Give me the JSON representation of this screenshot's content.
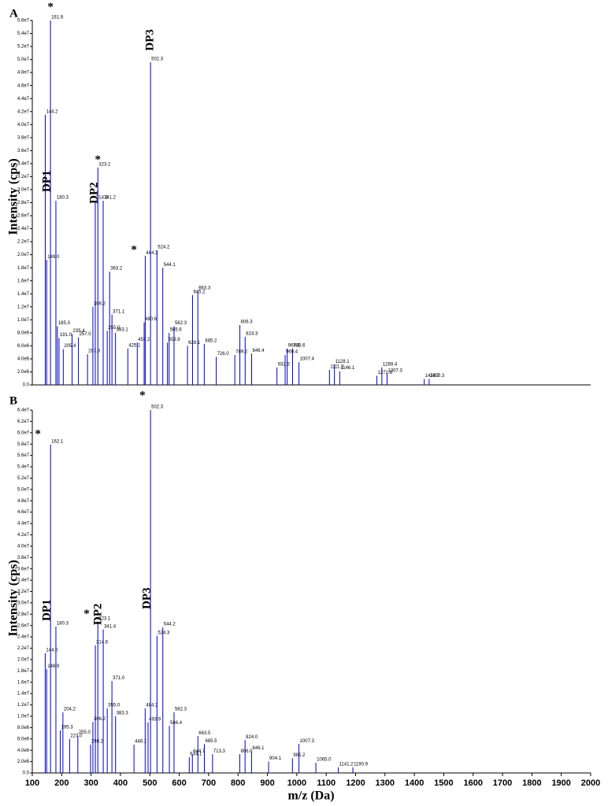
{
  "chart_data": [
    {
      "type": "stem",
      "title": "A",
      "ylabel": "Intensity (cps)",
      "color": "#0000cc",
      "xlim": [
        100,
        2000
      ],
      "ylim": [
        0,
        56000000
      ],
      "yticks": [
        {
          "value": 0,
          "label": "0.0"
        },
        {
          "value": 2000000,
          "label": "2.0e6"
        },
        {
          "value": 4000000,
          "label": "4.0e6"
        },
        {
          "value": 6000000,
          "label": "6.0e6"
        },
        {
          "value": 8000000,
          "label": "8.0e6"
        },
        {
          "value": 10000000,
          "label": "1.0e7"
        },
        {
          "value": 12000000,
          "label": "1.2e7"
        },
        {
          "value": 14000000,
          "label": "1.4e7"
        },
        {
          "value": 16000000,
          "label": "1.6e7"
        },
        {
          "value": 18000000,
          "label": "1.8e7"
        },
        {
          "value": 20000000,
          "label": "2.0e7"
        },
        {
          "value": 22000000,
          "label": "2.2e7"
        },
        {
          "value": 24000000,
          "label": "2.4e7"
        },
        {
          "value": 26000000,
          "label": "2.6e7"
        },
        {
          "value": 28000000,
          "label": "2.8e7"
        },
        {
          "value": 30000000,
          "label": "3.0e7"
        },
        {
          "value": 32000000,
          "label": "3.2e7"
        },
        {
          "value": 34000000,
          "label": "3.4e7"
        },
        {
          "value": 36000000,
          "label": "3.6e7"
        },
        {
          "value": 38000000,
          "label": "3.8e7"
        },
        {
          "value": 40000000,
          "label": "4.0e7"
        },
        {
          "value": 42000000,
          "label": "4.2e7"
        },
        {
          "value": 44000000,
          "label": "4.4e7"
        },
        {
          "value": 46000000,
          "label": "4.6e7"
        },
        {
          "value": 48000000,
          "label": "4.8e7"
        },
        {
          "value": 50000000,
          "label": "5.0e7"
        },
        {
          "value": 52000000,
          "label": "5.2e7"
        },
        {
          "value": 54000000,
          "label": "5.4e7"
        },
        {
          "value": 56000000,
          "label": "5.6e7"
        }
      ],
      "x": [
        161.9,
        144.2,
        180.3,
        149.0,
        185.3,
        191.0,
        205.4,
        235.4,
        257.0,
        287.9,
        314.3,
        323.2,
        341.2,
        363.2,
        306.2,
        371.1,
        355.0,
        383.1,
        425.1,
        457.2,
        484.3,
        502.3,
        524.2,
        544.1,
        480.6,
        565.6,
        582.3,
        559.9,
        645.2,
        663.3,
        628.1,
        685.2,
        726.0,
        806.3,
        824.3,
        789.2,
        846.4,
        960.4,
        967.3,
        985.6,
        1007.4,
        932.5,
        1128.1,
        1111.2,
        1146.1,
        1289.4,
        1272.6,
        1307.3,
        1433.7,
        1450.3
      ],
      "x_labels": [
        "161.9",
        "144.2",
        "180.3",
        "149.0",
        "185.3",
        "191.0",
        "205.4",
        "235.4",
        "257.0",
        "287.9",
        "314.3",
        "323.2",
        "341.2",
        "363.2",
        "306.2",
        "371.1",
        "355.0",
        "383.1",
        "425.1",
        "457.2",
        "484.3",
        "502.3",
        "524.2",
        "544.1",
        "480.6",
        "565.6",
        "582.3",
        "559.9",
        "645.2",
        "663.3",
        "628.1",
        "685.2",
        "726.0",
        "806.3",
        "824.3",
        "789.2",
        "846.4",
        "960.4",
        "967.3",
        "985.6",
        "1007.4",
        "932.5",
        "1128.1",
        "1111.2",
        "1146.1",
        "1289.4",
        "1272.6",
        "1307.3",
        "1433.7",
        "1450.3"
      ],
      "values": [
        56000000,
        41500000,
        28300000,
        19200000,
        9000000,
        7200000,
        5500000,
        7800000,
        7300000,
        4700000,
        28300000,
        33400000,
        28300000,
        17400000,
        12000000,
        10800000,
        8300000,
        8000000,
        5600000,
        6500000,
        19800000,
        49600000,
        20700000,
        18000000,
        9600000,
        8000000,
        9000000,
        6500000,
        13800000,
        14400000,
        6000000,
        6300000,
        4300000,
        9200000,
        7400000,
        4600000,
        4800000,
        4600000,
        5600000,
        5600000,
        3500000,
        2700000,
        3100000,
        2300000,
        2100000,
        2700000,
        1400000,
        1700000,
        900000,
        900000
      ],
      "annotations": [
        {
          "text": "*",
          "x": 161.9,
          "y": 58000000
        },
        {
          "text": "DP1",
          "x": 151,
          "y": 31300000,
          "vertical": true
        },
        {
          "text": "*",
          "x": 323.2,
          "y": 34500000
        },
        {
          "text": "DP2",
          "x": 312,
          "y": 29500000,
          "vertical": true
        },
        {
          "text": "*",
          "x": 446,
          "y": 20700000
        },
        {
          "text": "DP3",
          "x": 502.3,
          "y": 53000000,
          "vertical": true
        }
      ]
    },
    {
      "type": "stem",
      "title": "B",
      "ylabel": "Intensity (cps)",
      "xlabel": "m/z (Da)",
      "color": "#0000cc",
      "xlim": [
        100,
        2000
      ],
      "ylim": [
        0,
        64000000
      ],
      "xticks": [
        100,
        200,
        300,
        400,
        500,
        600,
        700,
        800,
        900,
        1000,
        1100,
        1200,
        1300,
        1400,
        1500,
        1600,
        1700,
        1800,
        1900,
        2000
      ],
      "yticks": [
        {
          "value": 0,
          "label": "0.0"
        },
        {
          "value": 2000000,
          "label": "2.0e6"
        },
        {
          "value": 4000000,
          "label": "4.0e6"
        },
        {
          "value": 6000000,
          "label": "6.0e6"
        },
        {
          "value": 8000000,
          "label": "8.0e6"
        },
        {
          "value": 10000000,
          "label": "1.0e7"
        },
        {
          "value": 12000000,
          "label": "1.2e7"
        },
        {
          "value": 14000000,
          "label": "1.4e7"
        },
        {
          "value": 16000000,
          "label": "1.6e7"
        },
        {
          "value": 18000000,
          "label": "1.8e7"
        },
        {
          "value": 20000000,
          "label": "2.0e7"
        },
        {
          "value": 22000000,
          "label": "2.2e7"
        },
        {
          "value": 24000000,
          "label": "2.4e7"
        },
        {
          "value": 26000000,
          "label": "2.6e7"
        },
        {
          "value": 28000000,
          "label": "2.8e7"
        },
        {
          "value": 30000000,
          "label": "3.0e7"
        },
        {
          "value": 32000000,
          "label": "3.2e7"
        },
        {
          "value": 34000000,
          "label": "3.4e7"
        },
        {
          "value": 36000000,
          "label": "3.6e7"
        },
        {
          "value": 38000000,
          "label": "3.8e7"
        },
        {
          "value": 40000000,
          "label": "4.0e7"
        },
        {
          "value": 42000000,
          "label": "4.2e7"
        },
        {
          "value": 44000000,
          "label": "4.4e7"
        },
        {
          "value": 46000000,
          "label": "4.6e7"
        },
        {
          "value": 48000000,
          "label": "4.8e7"
        },
        {
          "value": 50000000,
          "label": "5.0e7"
        },
        {
          "value": 52000000,
          "label": "5.2e7"
        },
        {
          "value": 54000000,
          "label": "5.4e7"
        },
        {
          "value": 56000000,
          "label": "5.6e7"
        },
        {
          "value": 58000000,
          "label": "5.8e7"
        },
        {
          "value": 60000000,
          "label": "6.0e7"
        },
        {
          "value": 62000000,
          "label": "6.2e7"
        },
        {
          "value": 64000000,
          "label": "6.4e7"
        }
      ],
      "x": [
        162.1,
        144.0,
        180.3,
        148.9,
        204.2,
        195.3,
        227.0,
        255.0,
        298.2,
        314.6,
        323.1,
        341.4,
        306.2,
        371.0,
        355.0,
        383.3,
        446.1,
        484.1,
        493.9,
        502.3,
        524.3,
        544.2,
        582.3,
        566.4,
        663.5,
        644.7,
        685.5,
        634.1,
        713.3,
        824.0,
        846.1,
        806.0,
        904.1,
        1007.3,
        985.2,
        1065.0,
        1141.2,
        1190.9
      ],
      "x_labels": [
        "162.1",
        "144.0",
        "180.3",
        "148.9",
        "204.2",
        "195.3",
        "227.0",
        "255.0",
        "298.2",
        "314.6",
        "323.1",
        "341.4",
        "306.2",
        "371.0",
        "355.0",
        "383.3",
        "446.1",
        "484.1",
        "493.9",
        "502.3",
        "524.3",
        "544.2",
        "582.3",
        "566.4",
        "663.5",
        "644.7",
        "685.5",
        "634.1",
        "713.3",
        "824.0",
        "846.1",
        "806.0",
        "904.1",
        "1007.3",
        "985.2",
        "1065.0",
        "1141.2",
        "1190.9"
      ],
      "values": [
        57900000,
        21100000,
        25800000,
        18300000,
        10700000,
        7500000,
        6000000,
        6600000,
        5000000,
        22500000,
        26700000,
        25300000,
        9000000,
        16200000,
        11400000,
        10000000,
        5000000,
        11400000,
        8900000,
        64000000,
        24200000,
        25700000,
        10700000,
        8300000,
        6500000,
        3300000,
        5100000,
        2800000,
        3300000,
        5800000,
        3800000,
        3300000,
        2000000,
        5100000,
        2600000,
        1800000,
        1000000,
        1000000
      ],
      "annotations": [
        {
          "text": "*",
          "x": 119,
          "y": 59700000
        },
        {
          "text": "DP1",
          "x": 151,
          "y": 28700000,
          "vertical": true
        },
        {
          "text": "*",
          "x": 285,
          "y": 28000000
        },
        {
          "text": "DP2",
          "x": 325,
          "y": 28000000,
          "vertical": true
        },
        {
          "text": "DP3",
          "x": 491,
          "y": 30800000,
          "vertical": true
        },
        {
          "text": "*",
          "x": 475,
          "y": 66500000
        }
      ]
    }
  ]
}
